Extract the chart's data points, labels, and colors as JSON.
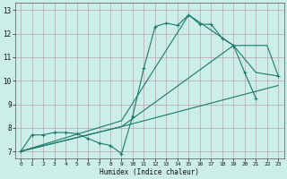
{
  "title": "",
  "xlabel": "Humidex (Indice chaleur)",
  "bg_color": "#cceee8",
  "grid_color": "#c0a0b0",
  "line_color": "#1a7a6a",
  "xlim": [
    -0.5,
    23.5
  ],
  "ylim": [
    6.7,
    13.3
  ],
  "xticks": [
    0,
    1,
    2,
    3,
    4,
    5,
    6,
    7,
    8,
    9,
    10,
    11,
    12,
    13,
    14,
    15,
    16,
    17,
    18,
    19,
    20,
    21,
    22,
    23
  ],
  "yticks": [
    7,
    8,
    9,
    10,
    11,
    12,
    13
  ],
  "line1_x": [
    0,
    1,
    2,
    3,
    4,
    5,
    6,
    7,
    8,
    9,
    10,
    11,
    12,
    13,
    14,
    15,
    16,
    17,
    18,
    19,
    20,
    21,
    22,
    23
  ],
  "line1_y": [
    7.0,
    7.7,
    7.7,
    7.8,
    7.8,
    7.75,
    7.55,
    7.35,
    7.25,
    6.9,
    8.5,
    10.55,
    12.3,
    12.45,
    12.35,
    12.8,
    12.4,
    12.4,
    11.8,
    11.5,
    10.35,
    9.25,
    null,
    10.2
  ],
  "line2_x": [
    0,
    9,
    19,
    22,
    23
  ],
  "line2_y": [
    7.0,
    8.05,
    11.5,
    11.5,
    10.2
  ],
  "line3_x": [
    0,
    9,
    15,
    19,
    21,
    23
  ],
  "line3_y": [
    7.0,
    8.3,
    12.8,
    11.5,
    10.35,
    10.2
  ],
  "line4_x": [
    0,
    9,
    23
  ],
  "line4_y": [
    7.0,
    8.05,
    9.8
  ]
}
